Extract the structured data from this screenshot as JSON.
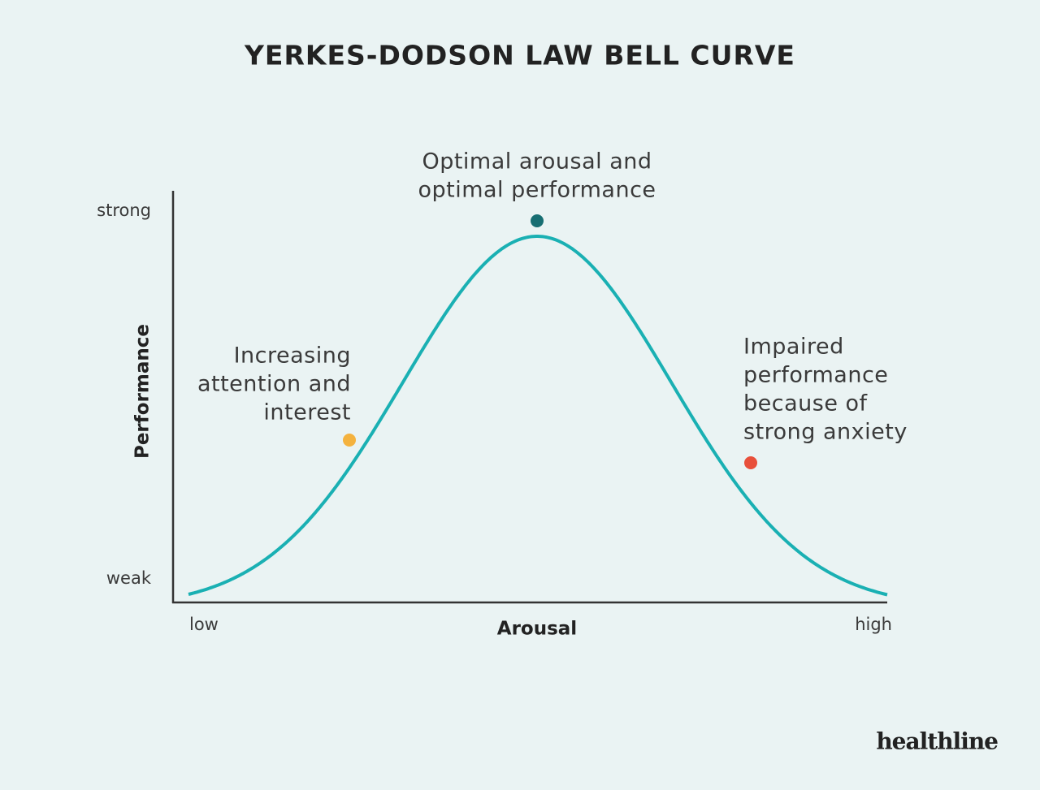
{
  "title": "YERKES-DODSON LAW BELL CURVE",
  "y_axis": {
    "label": "Performance",
    "top": "strong",
    "bottom": "weak"
  },
  "x_axis": {
    "label": "Arousal",
    "left": "low",
    "right": "high"
  },
  "annotations": [
    {
      "lines": [
        "Optimal arousal and",
        "optimal performance"
      ]
    },
    {
      "lines": [
        "Increasing",
        "attention and",
        "interest"
      ]
    },
    {
      "lines": [
        "Impaired",
        "performance",
        "because of",
        "strong anxiety"
      ]
    }
  ],
  "brand": "healthline"
}
